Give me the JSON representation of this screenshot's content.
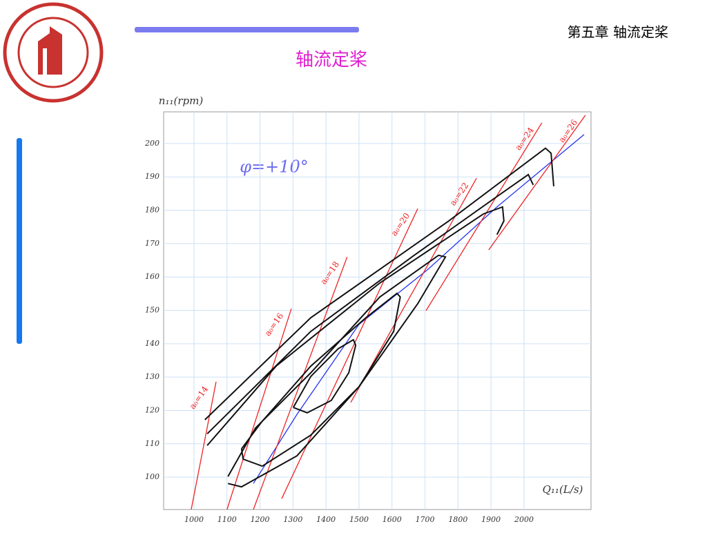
{
  "header": {
    "chapter": "第五章 轴流定桨",
    "title": "轴流定桨"
  },
  "chart_data": {
    "type": "line",
    "ylabel": "n₁₁(rpm)",
    "xlabel": "Q₁₁(L/s)",
    "annotation": "φ=+10°",
    "xlim": [
      908,
      2203
    ],
    "ylim": [
      90.3,
      209.5
    ],
    "xticks": [
      1000,
      1100,
      1200,
      1300,
      1400,
      1500,
      1600,
      1700,
      1800,
      1900,
      2000
    ],
    "yticks": [
      100,
      110,
      120,
      130,
      140,
      150,
      160,
      170,
      180,
      190,
      200
    ],
    "grid": true,
    "series": [
      {
        "color": "#2233ee",
        "x": [
          1180,
          1312,
          1500,
          1709,
          1918,
          2182
        ],
        "y": [
          98.1,
          118.8,
          145.8,
          162.3,
          181,
          202.7
        ]
      },
      {
        "name": "a₀=14",
        "color": "#ee2222",
        "x": [
          991.6,
          1067
        ],
        "y": [
          90.3,
          128.6
        ]
      },
      {
        "name": "a₀=16",
        "color": "#ee2222",
        "x": [
          1100,
          1295
        ],
        "y": [
          90.3,
          150.5
        ]
      },
      {
        "name": "a₀=18",
        "color": "#ee2222",
        "x": [
          1180,
          1464
        ],
        "y": [
          90.3,
          166
        ]
      },
      {
        "name": "a₀=20",
        "color": "#ee2222",
        "x": [
          1266,
          1678
        ],
        "y": [
          93.6,
          180.5
        ]
      },
      {
        "name": "a₀=22",
        "color": "#ee2222",
        "x": [
          1475,
          1856
        ],
        "y": [
          122.4,
          189.6
        ]
      },
      {
        "name": "a₀=24",
        "color": "#ee2222",
        "x": [
          1703,
          2054
        ],
        "y": [
          149.9,
          206.2
        ]
      },
      {
        "name": "a₀=26",
        "color": "#ee2222",
        "x": [
          1893,
          2186
        ],
        "y": [
          168.1,
          208.5
        ]
      },
      {
        "color": "#111111",
        "x": [
          1301,
          1354,
          1437,
          1483,
          1490,
          1469,
          1416,
          1343,
          1301
        ],
        "y": [
          120.9,
          130.2,
          138.5,
          141.2,
          139.5,
          131.3,
          123,
          119.3,
          120.9
        ]
      },
      {
        "color": "#111111",
        "x": [
          1144,
          1207,
          1354,
          1521,
          1615,
          1625,
          1605,
          1500,
          1354,
          1207,
          1149,
          1144
        ],
        "y": [
          108.5,
          116.8,
          133.3,
          147.8,
          155.1,
          154,
          143.7,
          127.1,
          112.6,
          103.3,
          105.4,
          108.5
        ]
      },
      {
        "color": "#111111",
        "x": [
          1103,
          1186,
          1354,
          1563,
          1741,
          1762,
          1678,
          1500,
          1312,
          1144,
          1103
        ],
        "y": [
          100.2,
          114.7,
          131.3,
          154,
          166.5,
          166,
          152,
          127.1,
          106.4,
          97.1,
          98.1
        ]
      },
      {
        "color": "#111111",
        "x": [
          1040,
          1249,
          1563,
          1877,
          1935,
          1939,
          1918
        ],
        "y": [
          109.5,
          133.3,
          158.2,
          178.9,
          181,
          176.8,
          172.7
        ]
      },
      {
        "color": "#111111",
        "x": [
          1040,
          1354,
          1667,
          1918,
          2013,
          2028
        ],
        "y": [
          113,
          143.7,
          166.5,
          184.1,
          190.7,
          187.6
        ]
      },
      {
        "color": "#111111",
        "x": [
          1033,
          1354,
          1772,
          2065,
          2082,
          2090
        ],
        "y": [
          117.2,
          147.8,
          176.8,
          198.6,
          197.1,
          187.2
        ]
      }
    ]
  }
}
